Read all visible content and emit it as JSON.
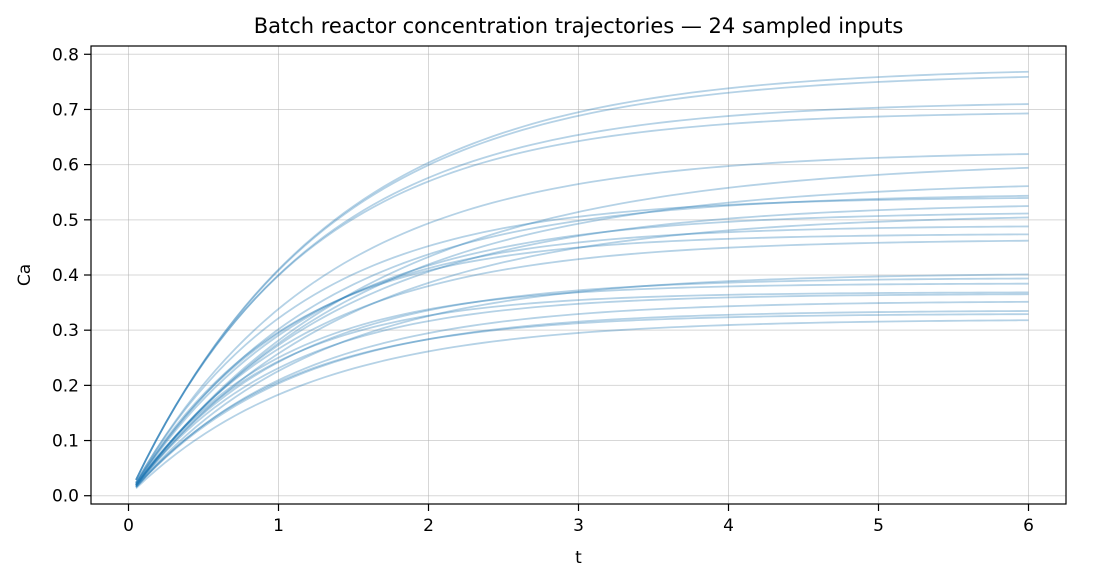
{
  "chart_data": {
    "type": "line",
    "title": "Batch reactor concentration trajectories — 24 sampled inputs",
    "xlabel": "t",
    "ylabel": "Ca",
    "xlim": [
      -0.25,
      6.25
    ],
    "ylim": [
      -0.015,
      0.815
    ],
    "xticks": [
      0,
      1,
      2,
      3,
      4,
      5,
      6
    ],
    "xtick_labels": [
      "0",
      "1",
      "2",
      "3",
      "4",
      "5",
      "6"
    ],
    "yticks": [
      0.0,
      0.1,
      0.2,
      0.3,
      0.4,
      0.5,
      0.6,
      0.7,
      0.8
    ],
    "ytick_labels": [
      "0.0",
      "0.1",
      "0.2",
      "0.3",
      "0.4",
      "0.5",
      "0.6",
      "0.7",
      "0.8"
    ],
    "grid": true,
    "line_color": "#1f77b4",
    "line_opacity": 0.33,
    "x_start": 0.05,
    "x_end": 6.0,
    "series": [
      {
        "asymptote": 0.777,
        "rate": 0.75
      },
      {
        "asymptote": 0.767,
        "rate": 0.76
      },
      {
        "asymptote": 0.715,
        "rate": 0.82
      },
      {
        "asymptote": 0.697,
        "rate": 0.85
      },
      {
        "asymptote": 0.625,
        "rate": 0.78
      },
      {
        "asymptote": 0.609,
        "rate": 0.62
      },
      {
        "asymptote": 0.572,
        "rate": 0.66
      },
      {
        "asymptote": 0.548,
        "rate": 0.8
      },
      {
        "asymptote": 0.542,
        "rate": 0.9
      },
      {
        "asymptote": 0.532,
        "rate": 0.72
      },
      {
        "asymptote": 0.515,
        "rate": 0.83
      },
      {
        "asymptote": 0.512,
        "rate": 0.7
      },
      {
        "asymptote": 0.49,
        "rate": 0.92
      },
      {
        "asymptote": 0.475,
        "rate": 0.98
      },
      {
        "asymptote": 0.465,
        "rate": 0.85
      },
      {
        "asymptote": 0.404,
        "rate": 0.82
      },
      {
        "asymptote": 0.395,
        "rate": 0.95
      },
      {
        "asymptote": 0.385,
        "rate": 1.05
      },
      {
        "asymptote": 0.369,
        "rate": 1.08
      },
      {
        "asymptote": 0.366,
        "rate": 1.0
      },
      {
        "asymptote": 0.353,
        "rate": 0.9
      },
      {
        "asymptote": 0.336,
        "rate": 0.93
      },
      {
        "asymptote": 0.33,
        "rate": 0.98
      },
      {
        "asymptote": 0.32,
        "rate": 0.85
      }
    ]
  }
}
